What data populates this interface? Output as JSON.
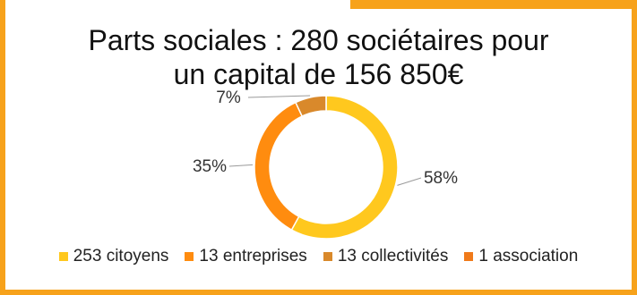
{
  "title_line1": "Parts sociales : 280 sociétaires pour",
  "title_line2": "un capital de 156 850€",
  "colors": {
    "citoyens": "#FFC81E",
    "entreprises": "#FF8C0F",
    "collectivites": "#D9892B",
    "association": "#F07A1A",
    "border": "#F7A21B"
  },
  "chart_data": {
    "type": "pie",
    "variant": "donut",
    "slices": [
      {
        "name": "253 citoyens",
        "percent": 58,
        "label": "58%",
        "color": "#FFC81E"
      },
      {
        "name": "13 entreprises",
        "percent": 35,
        "label": "35%",
        "color": "#FF8C0F"
      },
      {
        "name": "13 collectivités",
        "percent": 7,
        "label": "7%",
        "color": "#D9892B"
      },
      {
        "name": "1 association",
        "percent": 0,
        "label": "",
        "color": "#F07A1A"
      }
    ],
    "legend_position": "bottom"
  }
}
